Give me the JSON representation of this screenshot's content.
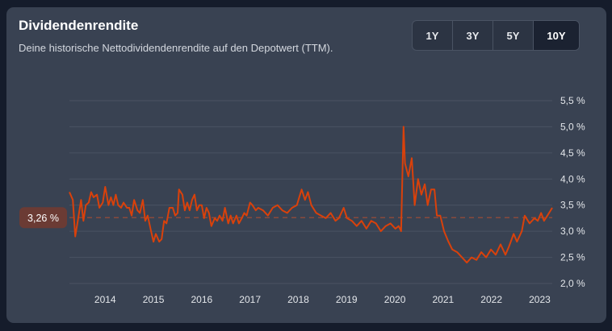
{
  "header": {
    "title": "Dividendenrendite",
    "subtitle": "Deine historische Nettodividendenrendite auf den Depotwert (TTM)."
  },
  "range": {
    "options": [
      "1Y",
      "3Y",
      "5Y",
      "10Y"
    ],
    "active": "10Y"
  },
  "colors": {
    "line": "#d9410b",
    "average": "#8a4a3c",
    "grid": "#4a5263"
  },
  "chart_data": {
    "type": "line",
    "title": "Dividendenrendite",
    "xlim": [
      2013.26,
      2023.26
    ],
    "ylim": [
      2.0,
      5.5
    ],
    "y_ticks": [
      2.0,
      2.5,
      3.0,
      3.5,
      4.0,
      4.5,
      5.0,
      5.5
    ],
    "y_tick_labels": [
      "2,0 %",
      "2,5 %",
      "3,0 %",
      "3,5 %",
      "4,0 %",
      "4,5 %",
      "5,0 %",
      "5,5 %"
    ],
    "x_ticks": [
      2014,
      2015,
      2016,
      2017,
      2018,
      2019,
      2020,
      2021,
      2022,
      2023
    ],
    "x_tick_labels": [
      "2014",
      "2015",
      "2016",
      "2017",
      "2018",
      "2019",
      "2020",
      "2021",
      "2022",
      "2023"
    ],
    "grid": true,
    "average": {
      "value": 3.26,
      "label": "3,26 %"
    },
    "points": [
      [
        2013.26,
        3.75
      ],
      [
        2013.33,
        3.6
      ],
      [
        2013.38,
        2.9
      ],
      [
        2013.45,
        3.3
      ],
      [
        2013.5,
        3.6
      ],
      [
        2013.55,
        3.2
      ],
      [
        2013.6,
        3.5
      ],
      [
        2013.66,
        3.55
      ],
      [
        2013.71,
        3.75
      ],
      [
        2013.76,
        3.65
      ],
      [
        2013.83,
        3.7
      ],
      [
        2013.88,
        3.45
      ],
      [
        2013.95,
        3.55
      ],
      [
        2014.0,
        3.85
      ],
      [
        2014.07,
        3.5
      ],
      [
        2014.12,
        3.65
      ],
      [
        2014.17,
        3.5
      ],
      [
        2014.22,
        3.7
      ],
      [
        2014.27,
        3.5
      ],
      [
        2014.33,
        3.45
      ],
      [
        2014.38,
        3.55
      ],
      [
        2014.45,
        3.45
      ],
      [
        2014.5,
        3.45
      ],
      [
        2014.55,
        3.3
      ],
      [
        2014.6,
        3.6
      ],
      [
        2014.67,
        3.4
      ],
      [
        2014.72,
        3.35
      ],
      [
        2014.78,
        3.6
      ],
      [
        2014.83,
        3.2
      ],
      [
        2014.88,
        3.3
      ],
      [
        2014.95,
        3.0
      ],
      [
        2015.0,
        2.8
      ],
      [
        2015.05,
        2.95
      ],
      [
        2015.12,
        2.8
      ],
      [
        2015.17,
        2.85
      ],
      [
        2015.22,
        3.2
      ],
      [
        2015.27,
        3.15
      ],
      [
        2015.33,
        3.45
      ],
      [
        2015.4,
        3.45
      ],
      [
        2015.45,
        3.3
      ],
      [
        2015.5,
        3.35
      ],
      [
        2015.53,
        3.8
      ],
      [
        2015.6,
        3.7
      ],
      [
        2015.65,
        3.4
      ],
      [
        2015.7,
        3.55
      ],
      [
        2015.75,
        3.4
      ],
      [
        2015.8,
        3.6
      ],
      [
        2015.85,
        3.7
      ],
      [
        2015.9,
        3.4
      ],
      [
        2015.95,
        3.5
      ],
      [
        2016.0,
        3.5
      ],
      [
        2016.05,
        3.25
      ],
      [
        2016.1,
        3.45
      ],
      [
        2016.15,
        3.35
      ],
      [
        2016.2,
        3.1
      ],
      [
        2016.27,
        3.25
      ],
      [
        2016.32,
        3.2
      ],
      [
        2016.37,
        3.3
      ],
      [
        2016.43,
        3.2
      ],
      [
        2016.48,
        3.45
      ],
      [
        2016.55,
        3.15
      ],
      [
        2016.6,
        3.3
      ],
      [
        2016.65,
        3.15
      ],
      [
        2016.72,
        3.3
      ],
      [
        2016.77,
        3.15
      ],
      [
        2016.83,
        3.25
      ],
      [
        2016.88,
        3.35
      ],
      [
        2016.93,
        3.3
      ],
      [
        2017.0,
        3.55
      ],
      [
        2017.05,
        3.5
      ],
      [
        2017.12,
        3.4
      ],
      [
        2017.17,
        3.45
      ],
      [
        2017.27,
        3.4
      ],
      [
        2017.37,
        3.3
      ],
      [
        2017.47,
        3.45
      ],
      [
        2017.57,
        3.5
      ],
      [
        2017.67,
        3.4
      ],
      [
        2017.77,
        3.35
      ],
      [
        2017.87,
        3.45
      ],
      [
        2017.97,
        3.5
      ],
      [
        2018.07,
        3.8
      ],
      [
        2018.14,
        3.6
      ],
      [
        2018.2,
        3.75
      ],
      [
        2018.27,
        3.5
      ],
      [
        2018.37,
        3.35
      ],
      [
        2018.47,
        3.3
      ],
      [
        2018.57,
        3.25
      ],
      [
        2018.67,
        3.35
      ],
      [
        2018.77,
        3.2
      ],
      [
        2018.84,
        3.25
      ],
      [
        2018.94,
        3.45
      ],
      [
        2019.01,
        3.25
      ],
      [
        2019.11,
        3.2
      ],
      [
        2019.21,
        3.1
      ],
      [
        2019.31,
        3.2
      ],
      [
        2019.41,
        3.05
      ],
      [
        2019.51,
        3.2
      ],
      [
        2019.61,
        3.15
      ],
      [
        2019.71,
        3.0
      ],
      [
        2019.81,
        3.1
      ],
      [
        2019.91,
        3.15
      ],
      [
        2020.01,
        3.05
      ],
      [
        2020.08,
        3.1
      ],
      [
        2020.13,
        3.0
      ],
      [
        2020.16,
        4.2
      ],
      [
        2020.18,
        5.0
      ],
      [
        2020.21,
        4.3
      ],
      [
        2020.28,
        4.05
      ],
      [
        2020.35,
        4.4
      ],
      [
        2020.41,
        3.5
      ],
      [
        2020.48,
        4.0
      ],
      [
        2020.55,
        3.7
      ],
      [
        2020.62,
        3.9
      ],
      [
        2020.68,
        3.5
      ],
      [
        2020.75,
        3.8
      ],
      [
        2020.82,
        3.8
      ],
      [
        2020.87,
        3.3
      ],
      [
        2020.94,
        3.3
      ],
      [
        2021.02,
        3.0
      ],
      [
        2021.11,
        2.8
      ],
      [
        2021.19,
        2.65
      ],
      [
        2021.29,
        2.6
      ],
      [
        2021.39,
        2.5
      ],
      [
        2021.49,
        2.4
      ],
      [
        2021.59,
        2.5
      ],
      [
        2021.69,
        2.45
      ],
      [
        2021.79,
        2.6
      ],
      [
        2021.89,
        2.5
      ],
      [
        2021.99,
        2.65
      ],
      [
        2022.09,
        2.55
      ],
      [
        2022.19,
        2.75
      ],
      [
        2022.29,
        2.55
      ],
      [
        2022.36,
        2.7
      ],
      [
        2022.46,
        2.95
      ],
      [
        2022.53,
        2.8
      ],
      [
        2022.63,
        3.0
      ],
      [
        2022.69,
        3.3
      ],
      [
        2022.79,
        3.15
      ],
      [
        2022.89,
        3.25
      ],
      [
        2022.96,
        3.2
      ],
      [
        2023.03,
        3.35
      ],
      [
        2023.09,
        3.2
      ],
      [
        2023.16,
        3.3
      ],
      [
        2023.26,
        3.45
      ]
    ]
  }
}
